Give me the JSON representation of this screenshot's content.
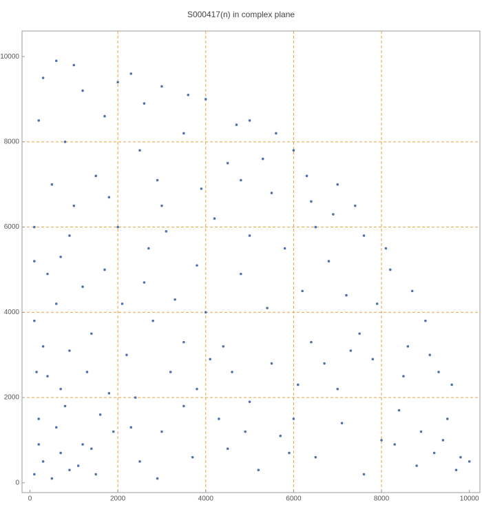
{
  "chart_data": {
    "type": "scatter",
    "title": "S000417(n) in complex plane",
    "x": [
      100,
      300,
      500,
      700,
      200,
      900,
      1200,
      400,
      1500,
      800,
      1800,
      2500,
      3000,
      2200,
      100,
      600,
      1400,
      3500,
      4000,
      3800,
      4500,
      5200,
      6000,
      5500,
      4800,
      6500,
      7000,
      7500,
      8000,
      8500,
      9000,
      9500,
      9800,
      8800,
      6200,
      6800,
      7400,
      8200,
      7000,
      6000,
      5000,
      4000,
      3000,
      2000,
      1000,
      300,
      200,
      800,
      1500,
      2500,
      3500,
      4500,
      5500,
      6500,
      5800,
      4200,
      3000,
      2000,
      1000,
      500,
      100,
      700,
      1700,
      2700,
      3800,
      5000,
      4400,
      5400,
      6400,
      7200,
      7900,
      8600,
      9300,
      9700,
      9200,
      8400,
      7600,
      7100,
      6700,
      6100,
      5700,
      5000,
      4300,
      3700,
      3200,
      2800,
      2400,
      1900,
      1300,
      900,
      300,
      200,
      600,
      1100,
      1600,
      2100,
      2600,
      3300,
      1200,
      400,
      100,
      900,
      1800,
      2900,
      3900,
      4800,
      5300,
      6300,
      6900,
      7600,
      8100,
      8700,
      9100,
      9600,
      10000,
      9400,
      8900,
      8300,
      7800,
      7300,
      4600,
      4100,
      3500,
      2300,
      1400,
      700,
      150,
      2900,
      4900,
      5900,
      1700,
      2600,
      3600,
      1200,
      600,
      2300,
      4700,
      5600,
      6400,
      3100
    ],
    "values": [
      200,
      500,
      100,
      700,
      1500,
      300,
      900,
      2500,
      200,
      1800,
      2100,
      500,
      1200,
      3000,
      3800,
      4200,
      3500,
      3300,
      4000,
      2200,
      800,
      300,
      1500,
      2800,
      4900,
      600,
      2200,
      3500,
      1000,
      2500,
      3800,
      1500,
      600,
      400,
      4500,
      5200,
      6500,
      5000,
      7000,
      7800,
      8500,
      9000,
      9300,
      9400,
      9800,
      9500,
      8500,
      8000,
      7200,
      7800,
      8200,
      7500,
      6800,
      6000,
      5500,
      6200,
      6500,
      6000,
      6500,
      7000,
      6000,
      5300,
      5000,
      5500,
      5100,
      5800,
      3200,
      4100,
      3300,
      4400,
      4200,
      3200,
      2600,
      300,
      700,
      1700,
      200,
      1400,
      2800,
      2300,
      1100,
      1900,
      1500,
      600,
      2600,
      3800,
      2000,
      1200,
      2600,
      3100,
      3200,
      900,
      1300,
      400,
      1600,
      4200,
      4700,
      4300,
      4600,
      4900,
      5200,
      5800,
      6700,
      7100,
      6900,
      7100,
      7600,
      7200,
      6300,
      5800,
      5500,
      4500,
      3000,
      2300,
      500,
      1000,
      1200,
      900,
      2900,
      3100,
      2600,
      2900,
      1800,
      1300,
      800,
      2200,
      2600,
      100,
      1200,
      700,
      8600,
      8900,
      9100,
      9200,
      9900,
      9600,
      8400,
      8200,
      6600,
      5900
    ],
    "color": "#4f72ad",
    "xlim": [
      -180,
      10240
    ],
    "ylim": [
      -230,
      10600
    ],
    "xticks": [
      0,
      2000,
      4000,
      6000,
      8000,
      10000
    ],
    "yticks": [
      0,
      2000,
      4000,
      6000,
      8000,
      10000
    ],
    "grid_lines": [
      2000,
      4000,
      6000,
      8000
    ],
    "grid_color": "#e8a040"
  }
}
